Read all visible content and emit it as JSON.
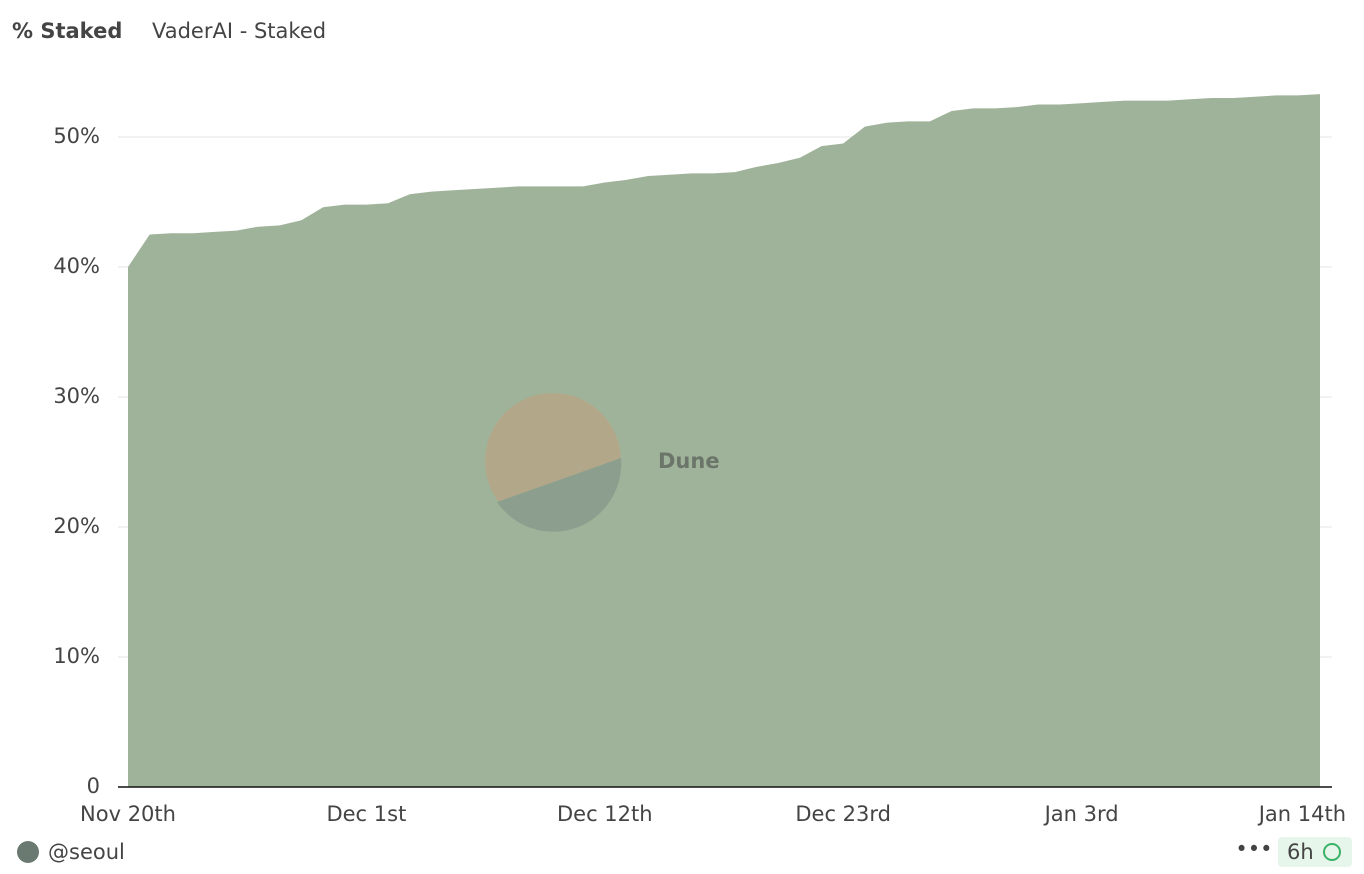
{
  "chart_data": {
    "type": "area",
    "title": "% Staked",
    "subtitle": "VaderAI - Staked",
    "categories": [
      "Nov 20th",
      null,
      null,
      null,
      null,
      null,
      null,
      null,
      null,
      null,
      null,
      "Dec 1st",
      null,
      null,
      null,
      null,
      null,
      null,
      null,
      null,
      null,
      null,
      "Dec 12th",
      null,
      null,
      null,
      null,
      null,
      null,
      null,
      null,
      null,
      null,
      "Dec 23rd",
      null,
      null,
      null,
      null,
      null,
      null,
      null,
      null,
      null,
      null,
      "Jan 3rd",
      null,
      null,
      null,
      null,
      null,
      null,
      null,
      null,
      null,
      null,
      "Jan 14th"
    ],
    "values": [
      40.0,
      42.5,
      42.6,
      42.6,
      42.7,
      42.8,
      43.1,
      43.2,
      43.6,
      44.6,
      44.8,
      44.8,
      44.9,
      45.6,
      45.8,
      45.9,
      46.0,
      46.1,
      46.2,
      46.2,
      46.2,
      46.2,
      46.5,
      46.7,
      47.0,
      47.1,
      47.2,
      47.2,
      47.3,
      47.7,
      48.0,
      48.4,
      49.3,
      49.5,
      50.8,
      51.1,
      51.2,
      51.2,
      52.0,
      52.2,
      52.2,
      52.3,
      52.5,
      52.5,
      52.6,
      52.7,
      52.8,
      52.8,
      52.8,
      52.9,
      53.0,
      53.0,
      53.1,
      53.2,
      53.2,
      53.3
    ],
    "color": "#9fb39a",
    "ylim": [
      0,
      55
    ],
    "yticks": [
      0,
      {
        "value": 10,
        "label": "10%"
      },
      {
        "value": 20,
        "label": "20%"
      },
      {
        "value": 30,
        "label": "30%"
      },
      {
        "value": 40,
        "label": "40%"
      },
      {
        "value": 50,
        "label": "50%"
      }
    ],
    "grid": true,
    "watermark": "Dune",
    "author": "@seoul",
    "refresh": "6h"
  }
}
